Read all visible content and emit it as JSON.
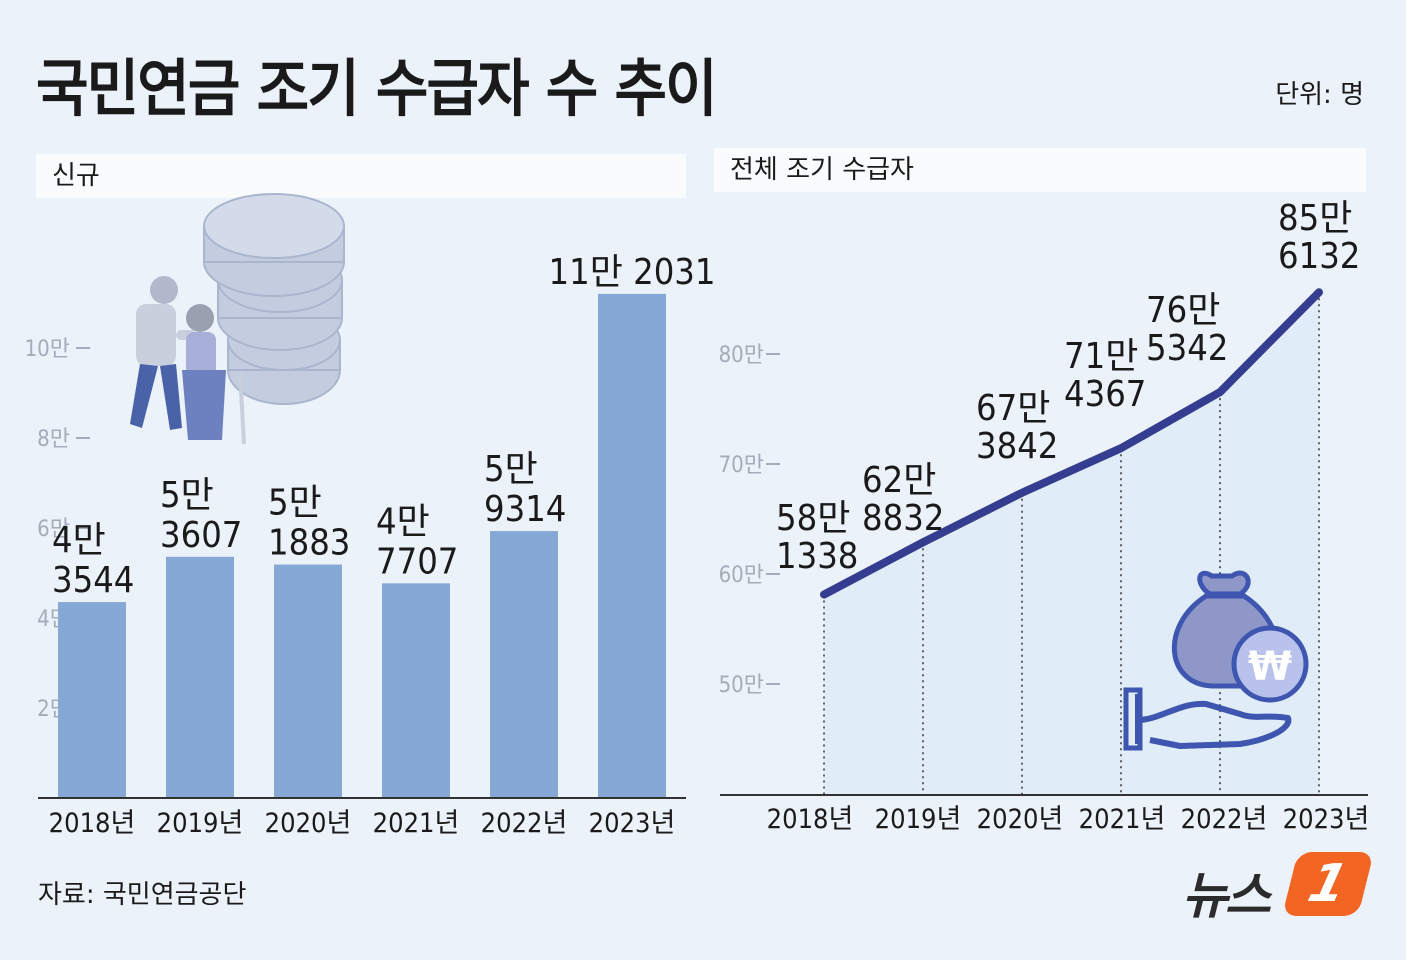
{
  "title": "국민연금 조기 수급자 수 추이",
  "unit": "단위: 명",
  "source": "자료: 국민연금공단",
  "logo": {
    "text": "뉴스",
    "mark": "1"
  },
  "colors": {
    "bar": "#86a8d6",
    "line": "#343d8f",
    "area": "#dcebf8",
    "background": "#ecf2f9"
  },
  "icons": [
    "elderly-couple-coins-illustration",
    "money-bag-hand-won-icon"
  ],
  "chart_data": [
    {
      "type": "bar",
      "panel_label": "신규",
      "categories": [
        "2018년",
        "2019년",
        "2020년",
        "2021년",
        "2022년",
        "2023년"
      ],
      "values": [
        43544,
        53607,
        51883,
        47707,
        59314,
        112031
      ],
      "data_labels": [
        [
          "4만",
          "3544"
        ],
        [
          "5만",
          "3607"
        ],
        [
          "5만",
          "1883"
        ],
        [
          "4만",
          "7707"
        ],
        [
          "5만",
          "9314"
        ],
        [
          "11만 2031"
        ]
      ],
      "yticks": [
        "2만",
        "4만",
        "6만",
        "8만",
        "10만"
      ],
      "ytick_values": [
        20000,
        40000,
        60000,
        80000,
        100000
      ],
      "ylim": [
        0,
        120000
      ]
    },
    {
      "type": "line",
      "panel_label": "전체 조기 수급자",
      "categories": [
        "2018년",
        "2019년",
        "2020년",
        "2021년",
        "2022년",
        "2023년"
      ],
      "values": [
        581338,
        628832,
        673842,
        714367,
        765342,
        856132
      ],
      "data_labels": [
        [
          "58만",
          "1338"
        ],
        [
          "62만",
          "8832"
        ],
        [
          "67만",
          "3842"
        ],
        [
          "71만",
          "4367"
        ],
        [
          "76만",
          "5342"
        ],
        [
          "85만",
          "6132"
        ]
      ],
      "yticks": [
        "50만",
        "60만",
        "70만",
        "80만"
      ],
      "ytick_values": [
        500000,
        600000,
        700000,
        800000
      ],
      "ylim": [
        400000,
        900000
      ]
    }
  ]
}
